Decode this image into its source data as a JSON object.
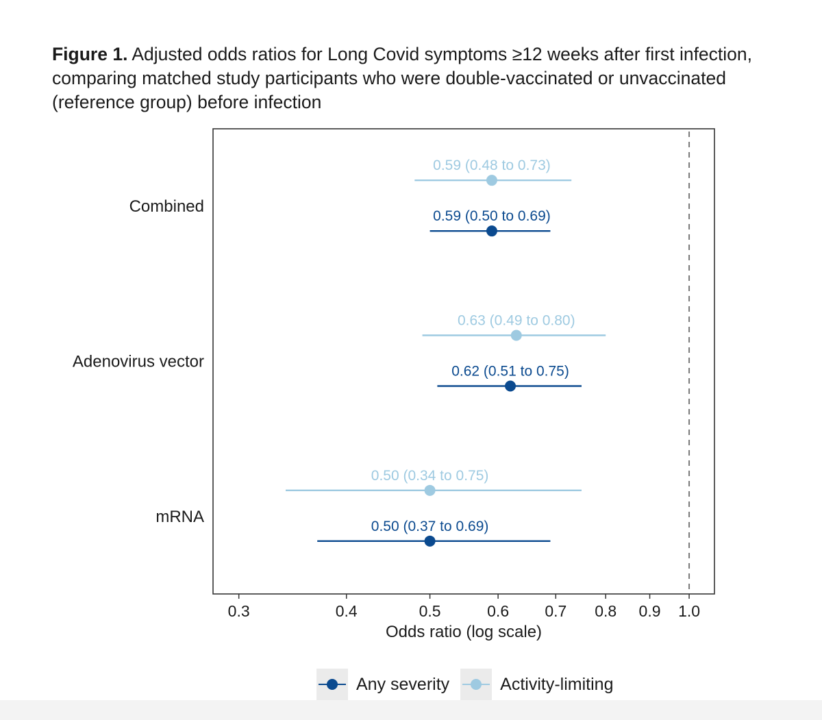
{
  "caption": {
    "label": "Figure 1.",
    "text": " Adjusted odds ratios for Long Covid symptoms ≥12 weeks after first infection, comparing matched study participants who were double-vaccinated or unvaccinated (reference group) before infection"
  },
  "colors": {
    "any_severity": "#0b4a8f",
    "activity_limiting": "#9ecae1",
    "frame": "#333333",
    "reference_line": "#777777",
    "legend_key_bg": "#ebebeb"
  },
  "chart_data": {
    "type": "forest",
    "xlabel": "Odds ratio (log scale)",
    "xscale": "log",
    "xlim": [
      0.28,
      1.07
    ],
    "xticks": [
      0.3,
      0.4,
      0.5,
      0.6,
      0.7,
      0.8,
      0.9,
      1.0
    ],
    "xtick_labels": [
      "0.3",
      "0.4",
      "0.5",
      "0.6",
      "0.7",
      "0.8",
      "0.9",
      "1.0"
    ],
    "reference_line": 1.0,
    "grid": false,
    "legend_position": "bottom",
    "categories": [
      "Combined",
      "Adenovirus vector",
      "mRNA"
    ],
    "series": [
      {
        "name": "Activity-limiting",
        "color_key": "activity_limiting",
        "points": [
          {
            "category": "Combined",
            "or": 0.59,
            "lo": 0.48,
            "hi": 0.73,
            "label": "0.59 (0.48 to 0.73)"
          },
          {
            "category": "Adenovirus vector",
            "or": 0.63,
            "lo": 0.49,
            "hi": 0.8,
            "label": "0.63 (0.49 to 0.80)"
          },
          {
            "category": "mRNA",
            "or": 0.5,
            "lo": 0.34,
            "hi": 0.75,
            "label": "0.50 (0.34 to 0.75)"
          }
        ]
      },
      {
        "name": "Any severity",
        "color_key": "any_severity",
        "points": [
          {
            "category": "Combined",
            "or": 0.59,
            "lo": 0.5,
            "hi": 0.69,
            "label": "0.59 (0.50 to 0.69)"
          },
          {
            "category": "Adenovirus vector",
            "or": 0.62,
            "lo": 0.51,
            "hi": 0.75,
            "label": "0.62 (0.51 to 0.75)"
          },
          {
            "category": "mRNA",
            "or": 0.5,
            "lo": 0.37,
            "hi": 0.69,
            "label": "0.50 (0.37 to 0.69)"
          }
        ]
      }
    ]
  },
  "legend": {
    "items": [
      {
        "label": "Any severity",
        "color_key": "any_severity"
      },
      {
        "label": "Activity-limiting",
        "color_key": "activity_limiting"
      }
    ]
  }
}
